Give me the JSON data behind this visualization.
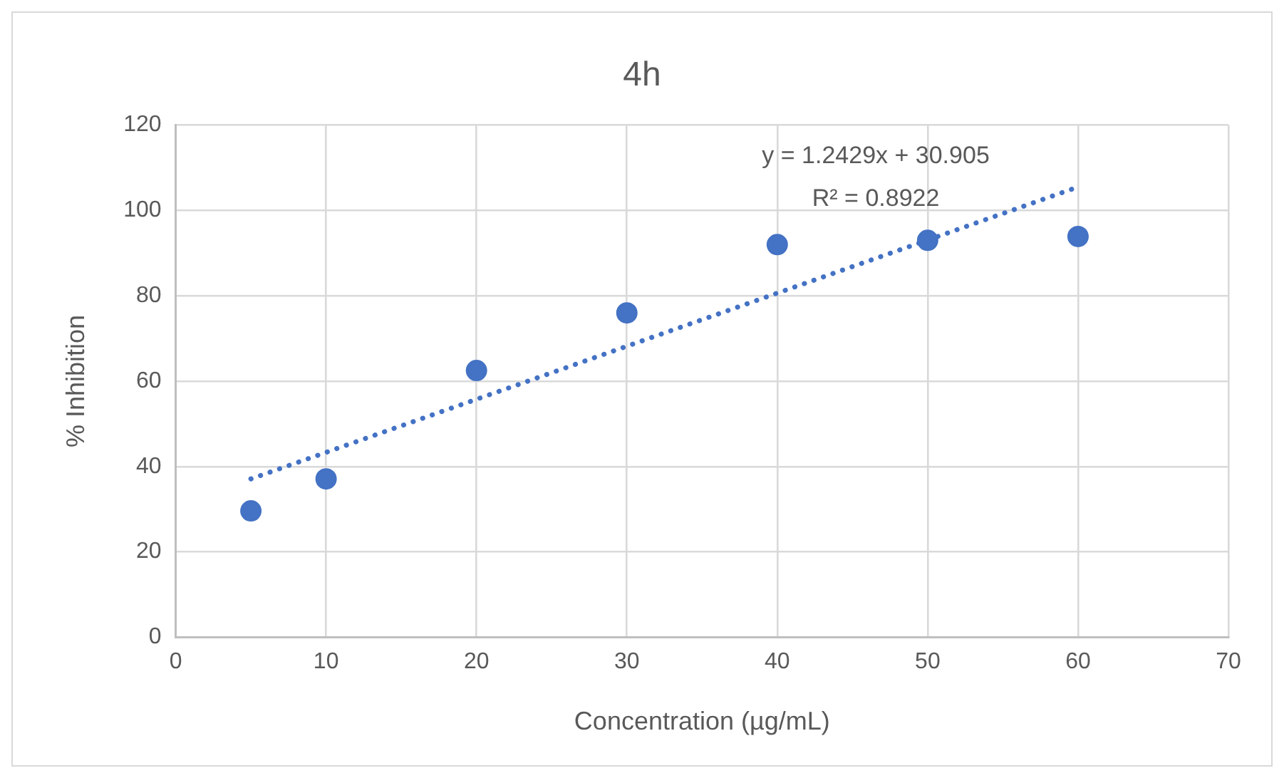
{
  "chart_data": {
    "type": "scatter",
    "title": "4h",
    "xlabel": "Concentration (µg/mL)",
    "ylabel": "% Inhibition",
    "xlim": [
      0,
      70
    ],
    "xticks": [
      0,
      10,
      20,
      30,
      40,
      50,
      60,
      70
    ],
    "ylim": [
      0,
      120
    ],
    "yticks": [
      0,
      20,
      40,
      60,
      80,
      100,
      120
    ],
    "grid": true,
    "legend": false,
    "series": [
      {
        "color": "#4472c4",
        "marker": "circle",
        "x": [
          5,
          10,
          20,
          30,
          40,
          50,
          60
        ],
        "values": [
          29.6,
          37.1,
          62.5,
          76,
          92,
          93,
          93.9
        ]
      },
      {
        "type": "line",
        "color": "#4472c4",
        "marker": "none",
        "line_style": "dotted",
        "x": [
          5,
          60
        ],
        "values": [
          37.1,
          105.5
        ]
      }
    ],
    "annotations": [
      "y = 1.2429x + 30.905",
      "R² = 0.8922"
    ]
  }
}
